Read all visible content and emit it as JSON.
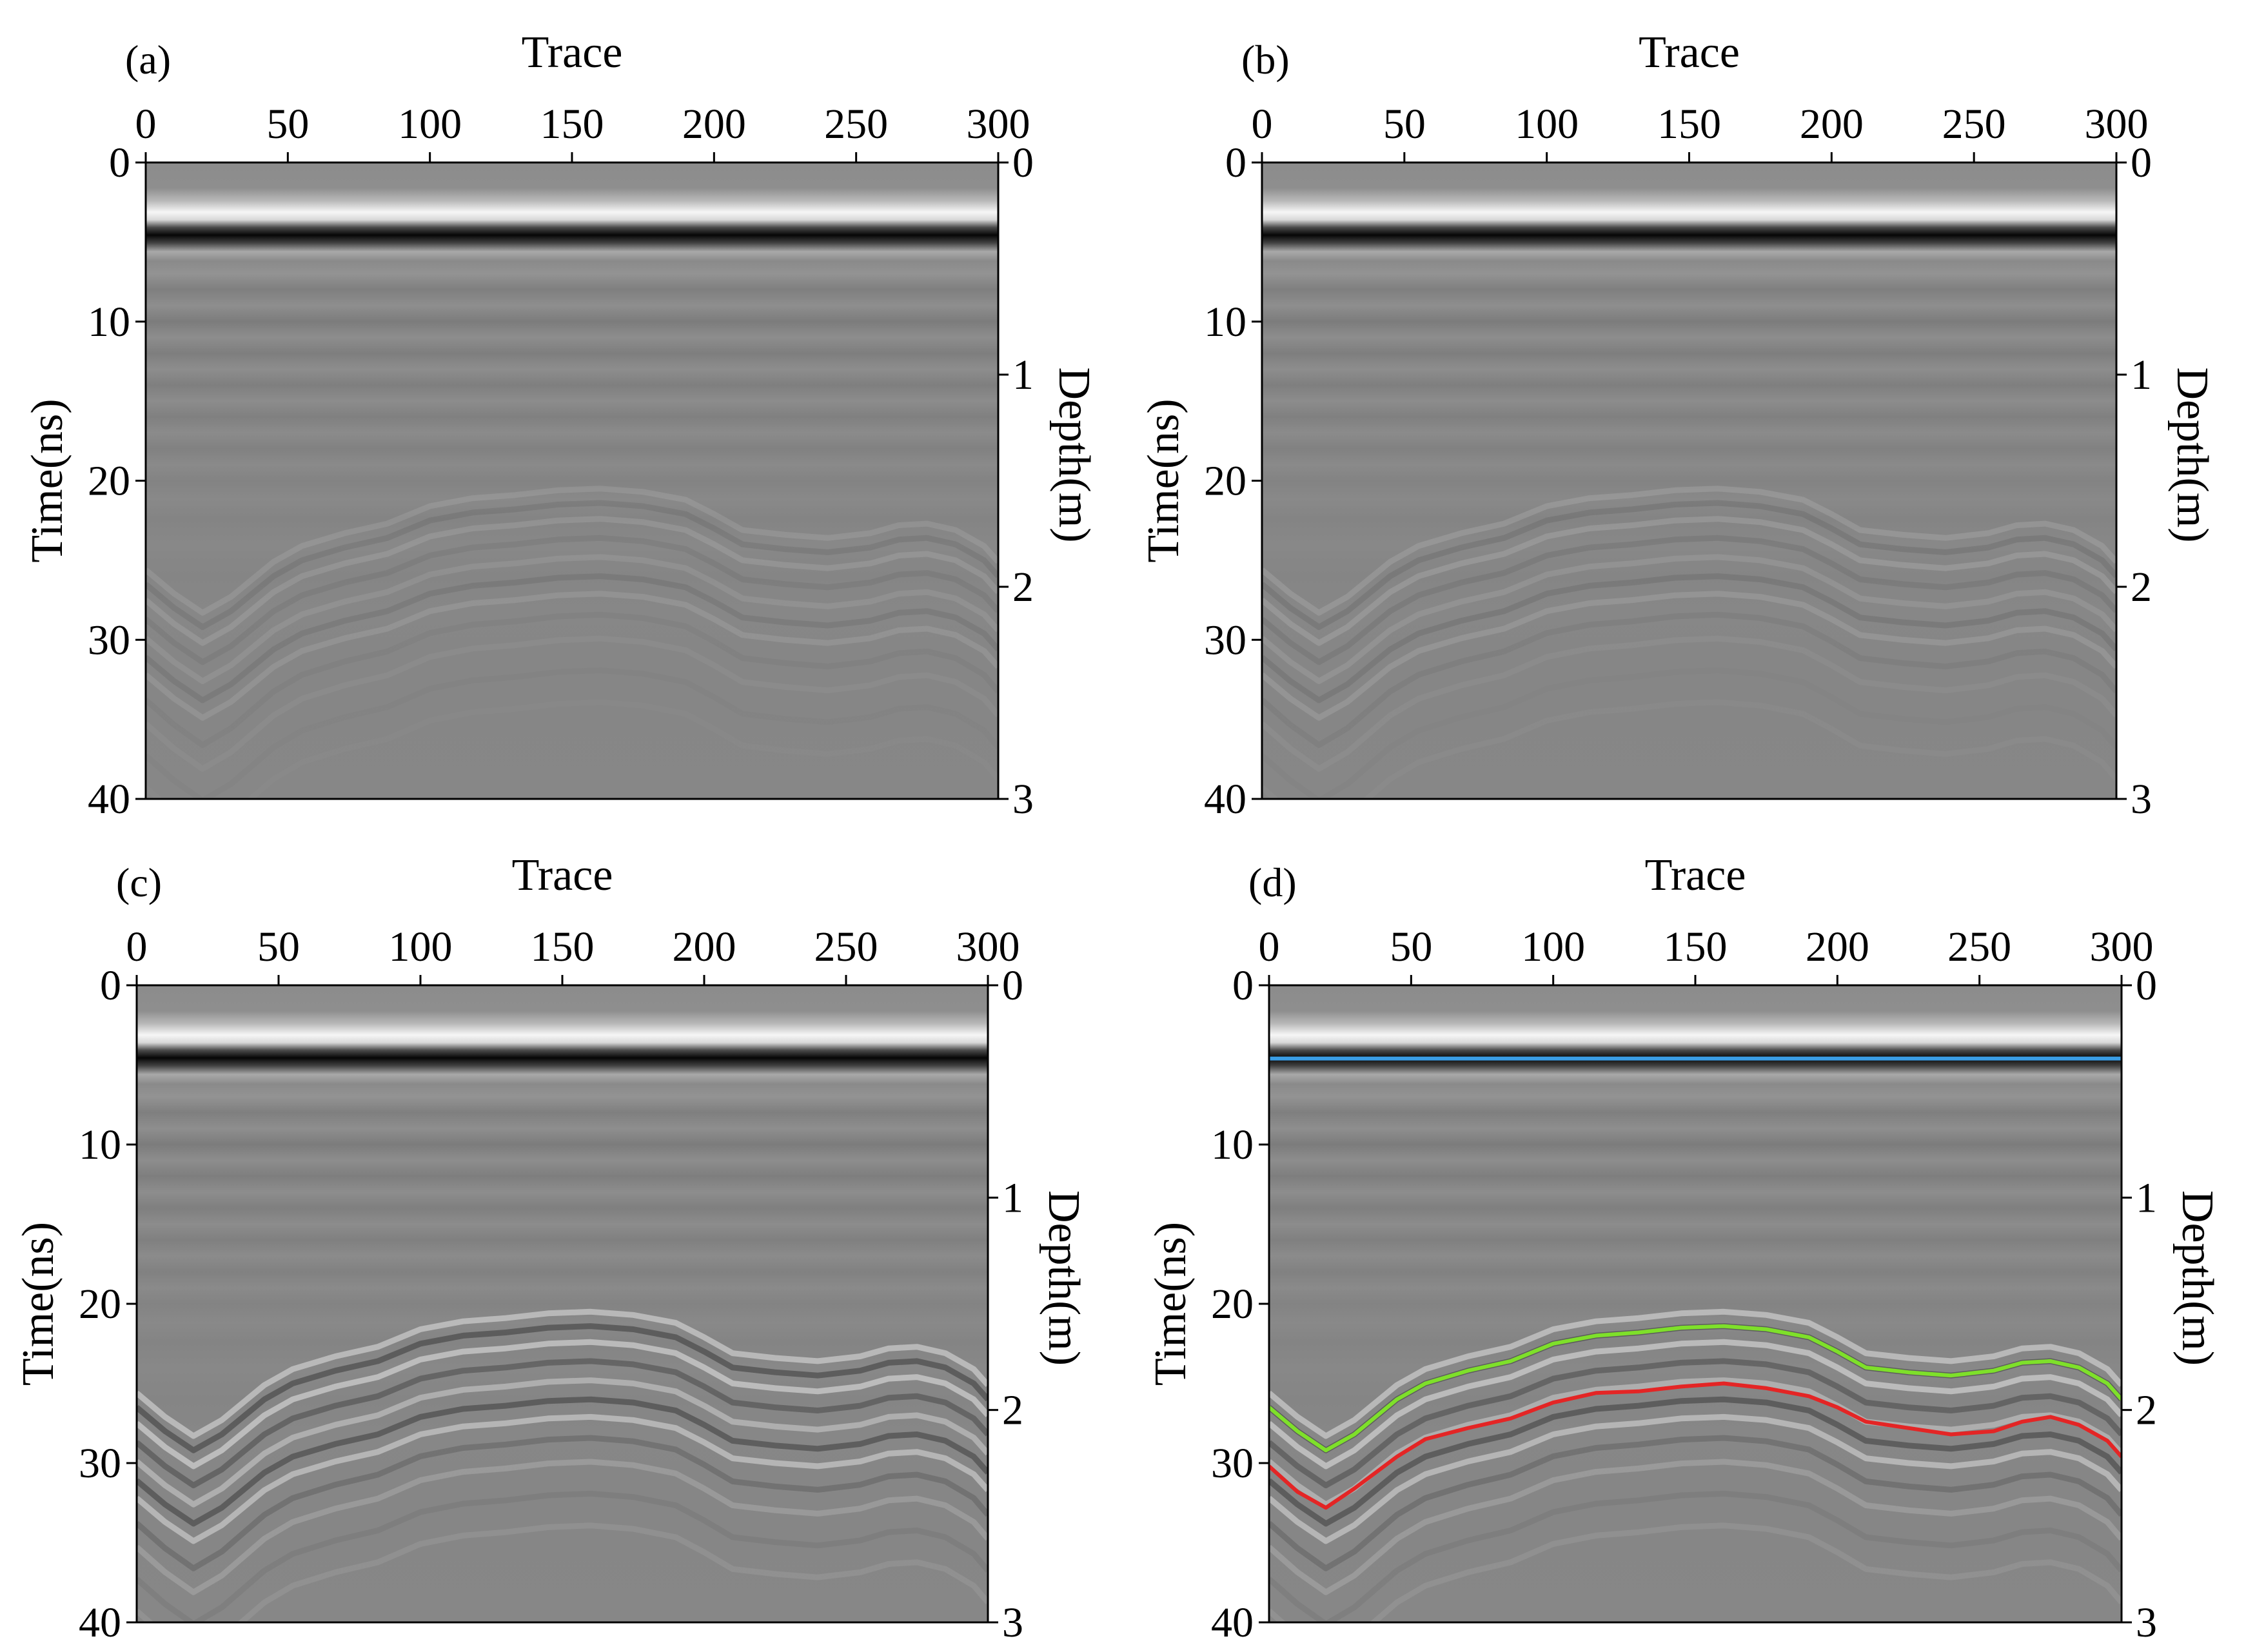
{
  "chart_data": [
    {
      "type": "heatmap",
      "panel_label": "(a)",
      "x_title": "Trace",
      "y_title": "Time(ns)",
      "y2_title": "Depth(m)",
      "x_ticks": [
        "0",
        "50",
        "100",
        "150",
        "200",
        "250",
        "300"
      ],
      "y_ticks": [
        "0",
        "10",
        "20",
        "30",
        "40"
      ],
      "y2_ticks": [
        "0",
        "1",
        "2",
        "3"
      ],
      "xlim": [
        0,
        300
      ],
      "ylim": [
        0,
        40
      ],
      "y2lim": [
        0,
        3
      ],
      "reflection_contrast": 0.25,
      "picks": []
    },
    {
      "type": "heatmap",
      "panel_label": "(b)",
      "x_title": "Trace",
      "y_title": "Time(ns)",
      "y2_title": "Depth(m)",
      "x_ticks": [
        "0",
        "50",
        "100",
        "150",
        "200",
        "250",
        "300"
      ],
      "y_ticks": [
        "0",
        "10",
        "20",
        "30",
        "40"
      ],
      "y2_ticks": [
        "0",
        "1",
        "2",
        "3"
      ],
      "xlim": [
        0,
        300
      ],
      "ylim": [
        0,
        40
      ],
      "y2lim": [
        0,
        3
      ],
      "reflection_contrast": 0.3,
      "picks": []
    },
    {
      "type": "heatmap",
      "panel_label": "(c)",
      "x_title": "Trace",
      "y_title": "Time(ns)",
      "y2_title": "Depth(m)",
      "x_ticks": [
        "0",
        "50",
        "100",
        "150",
        "200",
        "250",
        "300"
      ],
      "y_ticks": [
        "0",
        "10",
        "20",
        "30",
        "40"
      ],
      "y2_ticks": [
        "0",
        "1",
        "2",
        "3"
      ],
      "xlim": [
        0,
        300
      ],
      "ylim": [
        0,
        40
      ],
      "y2lim": [
        0,
        3
      ],
      "reflection_contrast": 1.0,
      "picks": []
    },
    {
      "type": "heatmap",
      "panel_label": "(d)",
      "x_title": "Trace",
      "y_title": "Time(ns)",
      "y2_title": "Depth(m)",
      "x_ticks": [
        "0",
        "50",
        "100",
        "150",
        "200",
        "250",
        "300"
      ],
      "y_ticks": [
        "0",
        "10",
        "20",
        "30",
        "40"
      ],
      "y2_ticks": [
        "0",
        "1",
        "2",
        "3"
      ],
      "xlim": [
        0,
        300
      ],
      "ylim": [
        0,
        40
      ],
      "y2lim": [
        0,
        3
      ],
      "reflection_contrast": 1.0,
      "picks": [
        {
          "name": "surface",
          "color": "#3a9ee6",
          "traces": [
            0,
            300
          ],
          "times": [
            4.6,
            4.6
          ]
        },
        {
          "name": "upper interface",
          "color": "#7ee02a",
          "traces": [
            0,
            10,
            20,
            30,
            45,
            55,
            70,
            85,
            100,
            115,
            130,
            145,
            160,
            175,
            190,
            200,
            210,
            225,
            240,
            255,
            265,
            275,
            285,
            295,
            300
          ],
          "times": [
            26.5,
            28.0,
            29.2,
            28.2,
            26.0,
            25.0,
            24.2,
            23.6,
            22.5,
            22.0,
            21.8,
            21.5,
            21.4,
            21.6,
            22.1,
            23.0,
            24.0,
            24.3,
            24.5,
            24.2,
            23.7,
            23.6,
            24.0,
            25.0,
            26.0
          ]
        },
        {
          "name": "lower interface",
          "color": "#e42525",
          "traces": [
            0,
            10,
            20,
            30,
            45,
            55,
            70,
            85,
            100,
            115,
            130,
            145,
            160,
            175,
            190,
            200,
            210,
            225,
            240,
            255,
            265,
            275,
            285,
            295,
            300
          ],
          "times": [
            30.2,
            31.8,
            32.8,
            31.6,
            29.6,
            28.5,
            27.8,
            27.2,
            26.2,
            25.6,
            25.5,
            25.2,
            25.0,
            25.3,
            25.8,
            26.5,
            27.4,
            27.8,
            28.2,
            28.0,
            27.4,
            27.1,
            27.6,
            28.6,
            29.6
          ]
        }
      ]
    }
  ]
}
